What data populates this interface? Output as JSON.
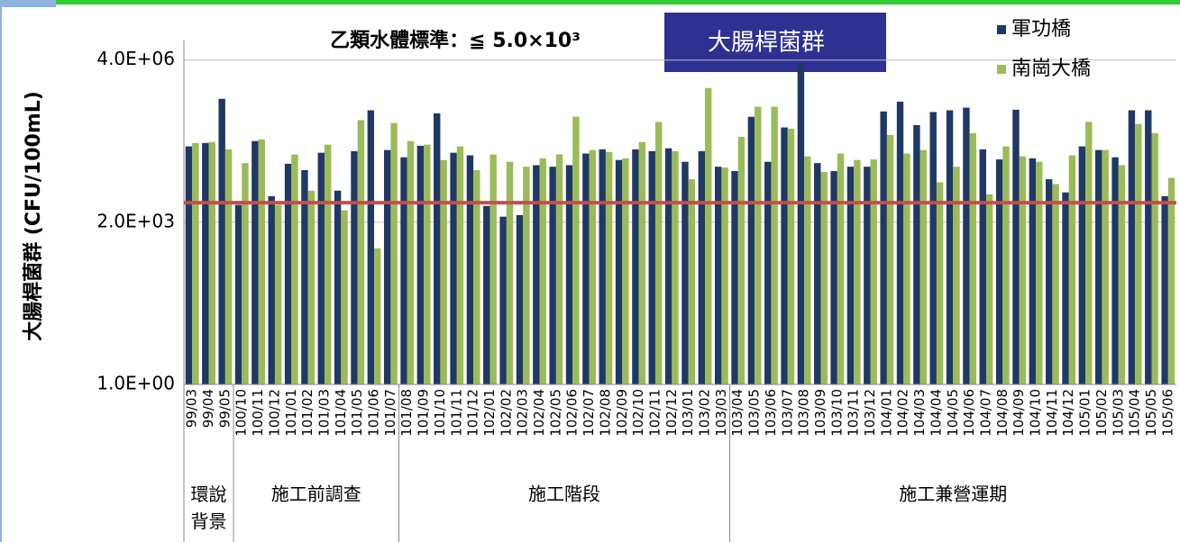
{
  "chart_data": {
    "type": "bar",
    "title": "乙類水體標準：≦ 5.0×10³",
    "badge": "大腸桿菌群",
    "ylabel": "大腸桿菌群 (CFU/100mL)",
    "log_scale": true,
    "ylim": [
      1,
      10000000
    ],
    "yticks": [
      {
        "value": 1,
        "label": "1.0E+00"
      },
      {
        "value": 2000,
        "label": "2.0E+03"
      },
      {
        "value": 4000000,
        "label": "4.0E+06"
      }
    ],
    "grid": true,
    "legend": "top-right",
    "reference_line": {
      "value": 5000,
      "color": "#c0504d"
    },
    "categories": [
      "99/03",
      "99/04",
      "99/05",
      "100/10",
      "100/11",
      "100/12",
      "101/01",
      "101/02",
      "101/03",
      "101/04",
      "101/05",
      "101/06",
      "101/07",
      "101/08",
      "101/09",
      "101/10",
      "101/11",
      "101/12",
      "102/01",
      "102/02",
      "102/03",
      "102/04",
      "102/05",
      "102/06",
      "102/07",
      "102/08",
      "102/09",
      "102/10",
      "102/11",
      "102/12",
      "103/01",
      "103/02",
      "103/03",
      "103/04",
      "103/05",
      "103/06",
      "103/07",
      "103/08",
      "103/09",
      "103/10",
      "103/11",
      "103/12",
      "104/01",
      "104/02",
      "104/03",
      "104/04",
      "104/05",
      "104/06",
      "104/07",
      "104/08",
      "104/09",
      "104/10",
      "104/11",
      "104/12",
      "105/01",
      "105/02",
      "105/03",
      "105/04",
      "105/05",
      "105/06"
    ],
    "groups": [
      {
        "label": "環說背景",
        "span": [
          0,
          2
        ]
      },
      {
        "label": "施工前調查",
        "span": [
          3,
          12
        ]
      },
      {
        "label": "施工階段",
        "span": [
          13,
          32
        ]
      },
      {
        "label": "施工兼營運期",
        "span": [
          33,
          59
        ]
      }
    ],
    "series": [
      {
        "name": "軍功橋",
        "color": "#1f3864",
        "values": [
          70000,
          82000,
          650000,
          4500,
          90000,
          6800,
          31000,
          23000,
          52000,
          8800,
          56000,
          380000,
          59000,
          42000,
          72000,
          330000,
          52000,
          46000,
          4300,
          2600,
          2800,
          29000,
          27000,
          29000,
          50000,
          61000,
          37000,
          61000,
          56000,
          64000,
          34000,
          56000,
          27000,
          22000,
          280000,
          34000,
          170000,
          3500000,
          32000,
          22000,
          27000,
          27000,
          360000,
          570000,
          190000,
          350000,
          380000,
          430000,
          61000,
          38000,
          390000,
          40000,
          15000,
          8100,
          70000,
          59000,
          42000,
          380000,
          380000,
          6800
        ]
      },
      {
        "name": "南崗大橋",
        "color": "#9bbb59",
        "values": [
          82000,
          86000,
          61000,
          32000,
          97000,
          4500,
          48000,
          8800,
          76000,
          3500,
          240000,
          590,
          210000,
          90000,
          76000,
          37000,
          70000,
          23000,
          48000,
          34000,
          27000,
          40000,
          48000,
          280000,
          59000,
          54000,
          40000,
          86000,
          220000,
          56000,
          15000,
          1080000,
          26000,
          110000,
          450000,
          450000,
          160000,
          44000,
          21000,
          50000,
          37000,
          38000,
          120000,
          50000,
          59000,
          13000,
          27000,
          130000,
          7400,
          70000,
          44000,
          34000,
          12000,
          46000,
          220000,
          59000,
          29000,
          200000,
          130000,
          16000
        ]
      }
    ]
  }
}
